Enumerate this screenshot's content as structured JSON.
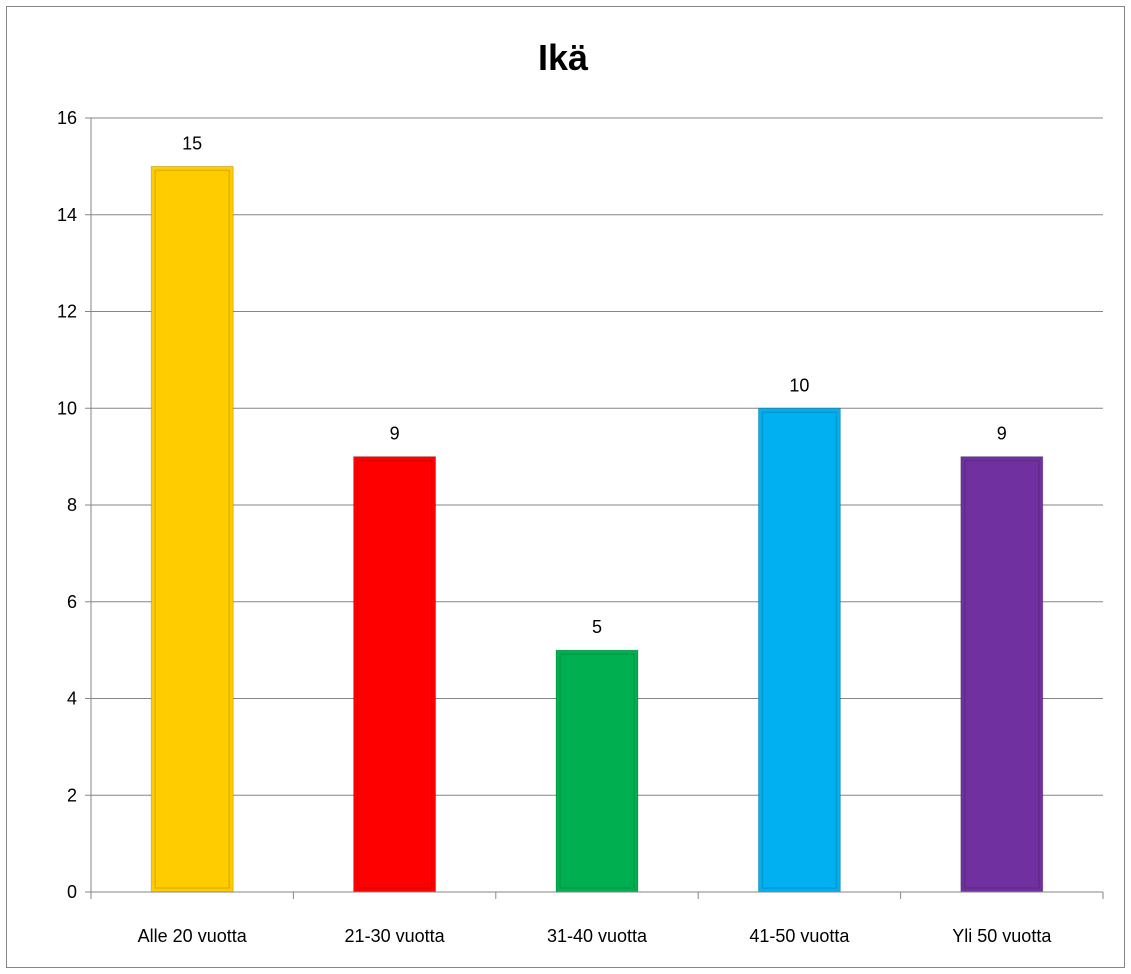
{
  "chart_data": {
    "type": "bar",
    "title": "Ikä",
    "xlabel": "",
    "ylabel": "",
    "categories": [
      "Alle 20 vuotta",
      "21-30 vuotta",
      "31-40 vuotta",
      "41-50 vuotta",
      "Yli 50 vuotta"
    ],
    "values": [
      15,
      9,
      5,
      10,
      9
    ],
    "data_labels": [
      "15",
      "9",
      "5",
      "10",
      "9"
    ],
    "colors": [
      "#FFCC00",
      "#FF0000",
      "#00B050",
      "#00B0F0",
      "#7030A0"
    ],
    "ylim": [
      0,
      16
    ],
    "yticks": [
      0,
      2,
      4,
      6,
      8,
      10,
      12,
      14,
      16
    ],
    "ytick_labels": [
      "0",
      "2",
      "4",
      "6",
      "8",
      "10",
      "12",
      "14",
      "16"
    ],
    "grid": true,
    "legend": "none"
  }
}
